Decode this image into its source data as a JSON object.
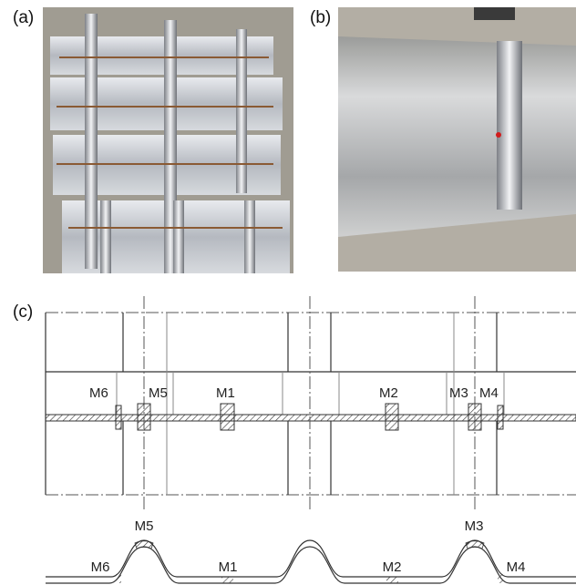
{
  "panels": {
    "a": {
      "label": "(a)"
    },
    "b": {
      "label": "(b)"
    },
    "c": {
      "label": "(c)",
      "plan_labels": [
        "M6",
        "M5",
        "M1",
        "M2",
        "M3",
        "M4"
      ],
      "section_labels": [
        "M5",
        "M3",
        "M6",
        "M1",
        "M2",
        "M4"
      ]
    }
  }
}
